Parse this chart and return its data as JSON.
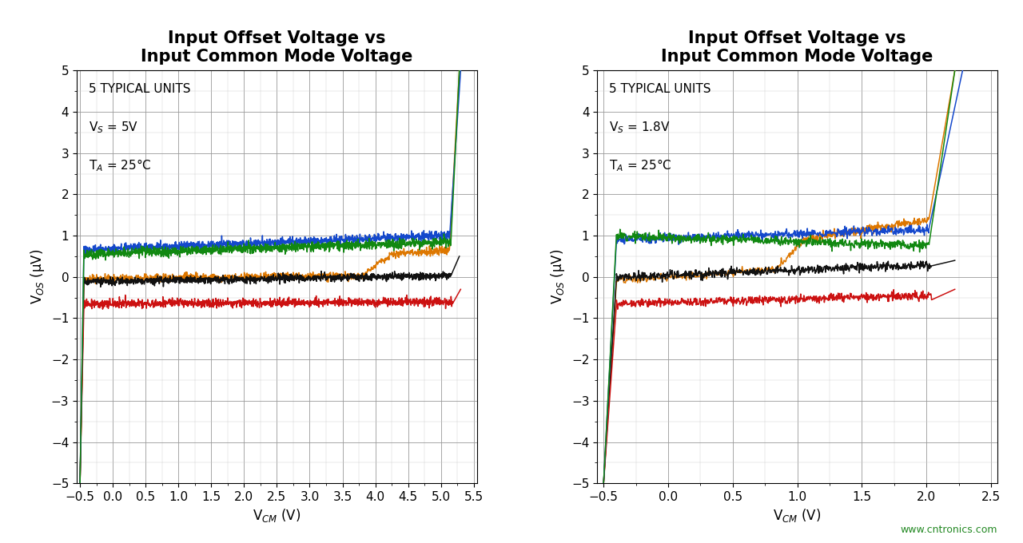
{
  "title": "Input Offset Voltage vs\nInput Common Mode Voltage",
  "xlabel": "V$_{CM}$ (V)",
  "ylabel": "V$_{OS}$ (μV)",
  "background_color": "#ffffff",
  "grid_color": "#999999",
  "plot1": {
    "annotation_line1": "5 TYPICAL UNITS",
    "annotation_line2": "V$_S$ = 5V",
    "annotation_line3": "T$_A$ = 25°C",
    "xlim": [
      -0.55,
      5.55
    ],
    "ylim": [
      -5,
      5
    ],
    "xticks": [
      -0.5,
      0.0,
      0.5,
      1.0,
      1.5,
      2.0,
      2.5,
      3.0,
      3.5,
      4.0,
      4.5,
      5.0,
      5.5
    ],
    "yticks": [
      -5,
      -4,
      -3,
      -2,
      -1,
      0,
      1,
      2,
      3,
      4,
      5
    ],
    "colors": [
      "#1448cc",
      "#cc1111",
      "#118811",
      "#dd7700",
      "#111111"
    ]
  },
  "plot2": {
    "annotation_line1": "5 TYPICAL UNITS",
    "annotation_line2": "V$_S$ = 1.8V",
    "annotation_line3": "T$_A$ = 25°C",
    "xlim": [
      -0.55,
      2.55
    ],
    "ylim": [
      -5,
      5
    ],
    "xticks": [
      -0.5,
      0.0,
      0.5,
      1.0,
      1.5,
      2.0,
      2.5
    ],
    "yticks": [
      -5,
      -4,
      -3,
      -2,
      -1,
      0,
      1,
      2,
      3,
      4,
      5
    ],
    "colors": [
      "#1448cc",
      "#cc1111",
      "#118811",
      "#dd7700",
      "#111111"
    ]
  },
  "watermark": "www.cntronics.com",
  "title_fontsize": 15,
  "label_fontsize": 12,
  "tick_fontsize": 11,
  "annotation_fontsize": 11
}
